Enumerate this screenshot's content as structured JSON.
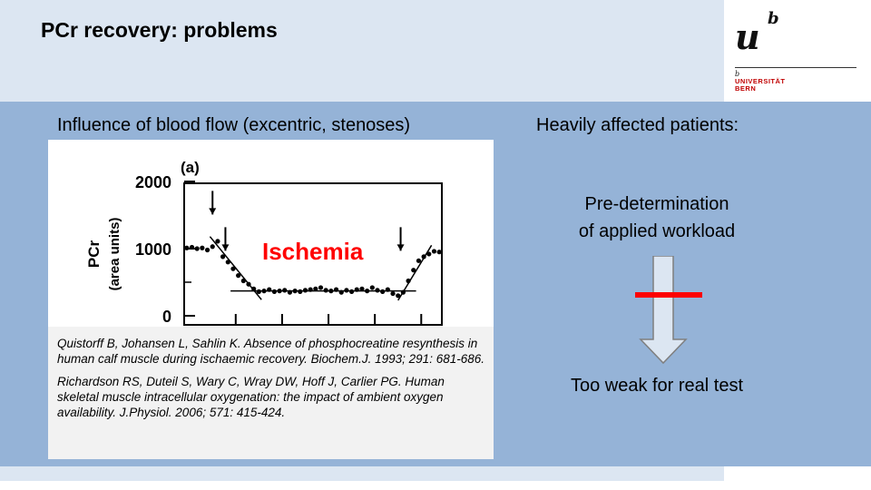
{
  "slide": {
    "title": "PCr recovery: problems",
    "left_heading": "Influence of blood flow (excentric, stenoses)",
    "right_heading": "Heavily affected patients:",
    "predetermination_lines": [
      "Pre-determination",
      "of applied workload"
    ],
    "bottom_text": "Too weak for real test",
    "colors": {
      "header_band": "#dce6f2",
      "main_band": "#95b3d7",
      "bar": "#ff0000",
      "annotation": "#ff0000"
    }
  },
  "logo": {
    "mark": "u",
    "superscript": "b",
    "small_b": "b",
    "line1": "UNIVERSITÄT",
    "line2": "BERN"
  },
  "references": [
    "Quistorff B, Johansen L, Sahlin K. Absence of phosphocreatine resynthesis in human calf muscle during ischaemic recovery. Biochem.J. 1993; 291: 681-686.",
    "Richardson RS, Duteil S, Wary C, Wray DW, Hoff J, Carlier PG. Human skeletal muscle intracellular oxygenation: the impact of ambient oxygen availability. J.Physiol. 2006; 571: 415-424."
  ],
  "chart_data": {
    "type": "scatter",
    "panel_label": "(a)",
    "ylabel_line1": "PCr",
    "ylabel_line2": "(area units)",
    "annotation": "Ischemia",
    "ylim": [
      0,
      2000
    ],
    "yticks": [
      0,
      1000,
      2000
    ],
    "xlim": [
      0,
      100
    ],
    "grid": false,
    "series": [
      {
        "x": [
          1,
          3,
          5,
          7,
          9,
          11,
          13,
          15,
          17,
          19,
          21,
          23,
          25,
          27,
          29,
          31,
          33,
          35,
          37,
          39,
          41,
          43,
          45,
          47,
          49,
          51,
          53,
          55,
          57,
          59,
          61,
          63,
          65,
          67,
          69,
          71,
          73,
          75,
          77,
          79,
          81,
          83,
          85,
          87,
          89,
          91,
          93,
          95,
          97,
          99
        ],
        "y": [
          1010,
          1020,
          1000,
          1010,
          980,
          1030,
          1110,
          880,
          800,
          700,
          600,
          520,
          470,
          400,
          360,
          370,
          390,
          360,
          370,
          380,
          350,
          370,
          360,
          380,
          390,
          400,
          420,
          380,
          370,
          390,
          350,
          380,
          360,
          390,
          400,
          370,
          420,
          380,
          360,
          390,
          330,
          300,
          350,
          520,
          680,
          820,
          880,
          920,
          960,
          950
        ]
      }
    ]
  }
}
